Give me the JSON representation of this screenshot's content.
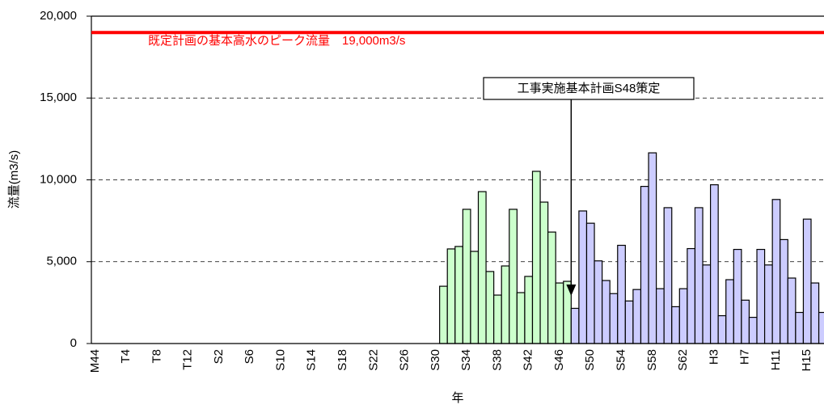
{
  "chart_data": {
    "type": "bar",
    "y_label": "流量(m3/s)",
    "x_label": "年",
    "categories": [
      "M44",
      null,
      null,
      null,
      "T4",
      null,
      null,
      null,
      "T8",
      null,
      null,
      null,
      "T12",
      null,
      null,
      null,
      "S2",
      null,
      null,
      null,
      "S6",
      null,
      null,
      null,
      "S10",
      null,
      null,
      null,
      "S14",
      null,
      null,
      null,
      "S18",
      null,
      null,
      null,
      "S22",
      null,
      null,
      null,
      "S26",
      null,
      null,
      null,
      "S30",
      null,
      null,
      null,
      "S34",
      null,
      null,
      null,
      "S38",
      null,
      null,
      null,
      "S42",
      null,
      null,
      null,
      "S46",
      null,
      null,
      null,
      "S50",
      null,
      null,
      null,
      "S54",
      null,
      null,
      null,
      "S58",
      null,
      null,
      null,
      "S62",
      null,
      null,
      null,
      "H3",
      null,
      null,
      null,
      "H7",
      null,
      null,
      null,
      "H11",
      null,
      null,
      null,
      "H15",
      null,
      null
    ],
    "series": [
      {
        "color": "#ccffcc",
        "values": [
          null,
          null,
          null,
          null,
          null,
          null,
          null,
          null,
          null,
          null,
          null,
          null,
          null,
          null,
          null,
          null,
          null,
          null,
          null,
          null,
          null,
          null,
          null,
          null,
          null,
          null,
          null,
          null,
          null,
          null,
          null,
          null,
          null,
          null,
          null,
          null,
          null,
          null,
          null,
          null,
          null,
          null,
          null,
          null,
          null,
          3500,
          5780,
          5930,
          8200,
          5630,
          9280,
          4400,
          2960,
          4740,
          8200,
          3110,
          4100,
          10520,
          8640,
          6810,
          3700,
          3800,
          null,
          null,
          null,
          null,
          null,
          null,
          null,
          null,
          null,
          null,
          null,
          null,
          null,
          null,
          null,
          null,
          null,
          null,
          null,
          null,
          null,
          null,
          null,
          null,
          null,
          null,
          null,
          null,
          null,
          null,
          null,
          null,
          null
        ]
      },
      {
        "color": "#ccccff",
        "values": [
          null,
          null,
          null,
          null,
          null,
          null,
          null,
          null,
          null,
          null,
          null,
          null,
          null,
          null,
          null,
          null,
          null,
          null,
          null,
          null,
          null,
          null,
          null,
          null,
          null,
          null,
          null,
          null,
          null,
          null,
          null,
          null,
          null,
          null,
          null,
          null,
          null,
          null,
          null,
          null,
          null,
          null,
          null,
          null,
          null,
          null,
          null,
          null,
          null,
          null,
          null,
          null,
          null,
          null,
          null,
          null,
          null,
          null,
          null,
          null,
          null,
          null,
          2150,
          8100,
          7350,
          5050,
          3850,
          3050,
          6000,
          2600,
          3300,
          9600,
          11650,
          3350,
          8300,
          2250,
          3350,
          5800,
          8300,
          4800,
          9700,
          1700,
          3900,
          5750,
          2650,
          1600,
          5750,
          4800,
          8800,
          6350,
          4000,
          1900,
          7600,
          3700,
          1900
        ]
      }
    ],
    "ylim": [
      0,
      20000
    ],
    "yticks": [
      0,
      {
        "value": 5000,
        "label": "5,000"
      },
      {
        "value": 10000,
        "label": "10,000"
      },
      {
        "value": 15000,
        "label": "15,000"
      },
      {
        "value": 20000,
        "label": "20,000"
      }
    ],
    "grid": true,
    "reference_line": {
      "value": 19000,
      "label": "既定計画の基本高水のピーク流量　19,000m3/s",
      "color": "#ff0000"
    },
    "annotation": "工事実施基本計画S48策定"
  }
}
